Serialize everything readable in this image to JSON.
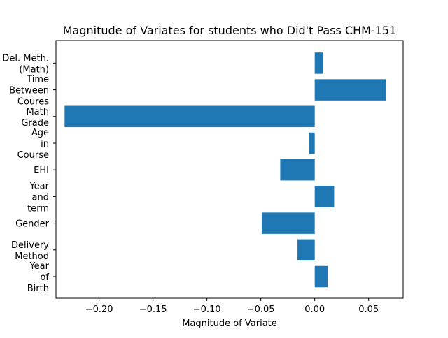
{
  "chart_data": {
    "type": "bar",
    "orientation": "horizontal",
    "title": "Magnitude of Variates for students who Did't Pass CHM-151",
    "xlabel": "Magnitude of Variate",
    "ylabel": "",
    "xlim": [
      -0.24,
      0.082
    ],
    "grid": false,
    "bar_color": "#1f77b4",
    "categories": [
      [
        "Year",
        "of",
        "Birth"
      ],
      [
        "Delivery",
        "Method"
      ],
      [
        "Gender"
      ],
      [
        "Year",
        "and",
        "term"
      ],
      [
        "EHI"
      ],
      [
        "Age",
        "in",
        "Course"
      ],
      [
        "Math",
        "Grade"
      ],
      [
        "Time",
        "Between",
        "Coures"
      ],
      [
        "Del. Meth.",
        "(Math)"
      ]
    ],
    "values": [
      0.012,
      -0.016,
      -0.049,
      0.018,
      -0.032,
      -0.005,
      -0.232,
      0.066,
      0.008
    ],
    "xticks": [
      -0.2,
      -0.15,
      -0.1,
      -0.05,
      0.0,
      0.05
    ],
    "xtick_labels": [
      "−0.20",
      "−0.15",
      "−0.10",
      "−0.05",
      "0.00",
      "0.05"
    ]
  }
}
